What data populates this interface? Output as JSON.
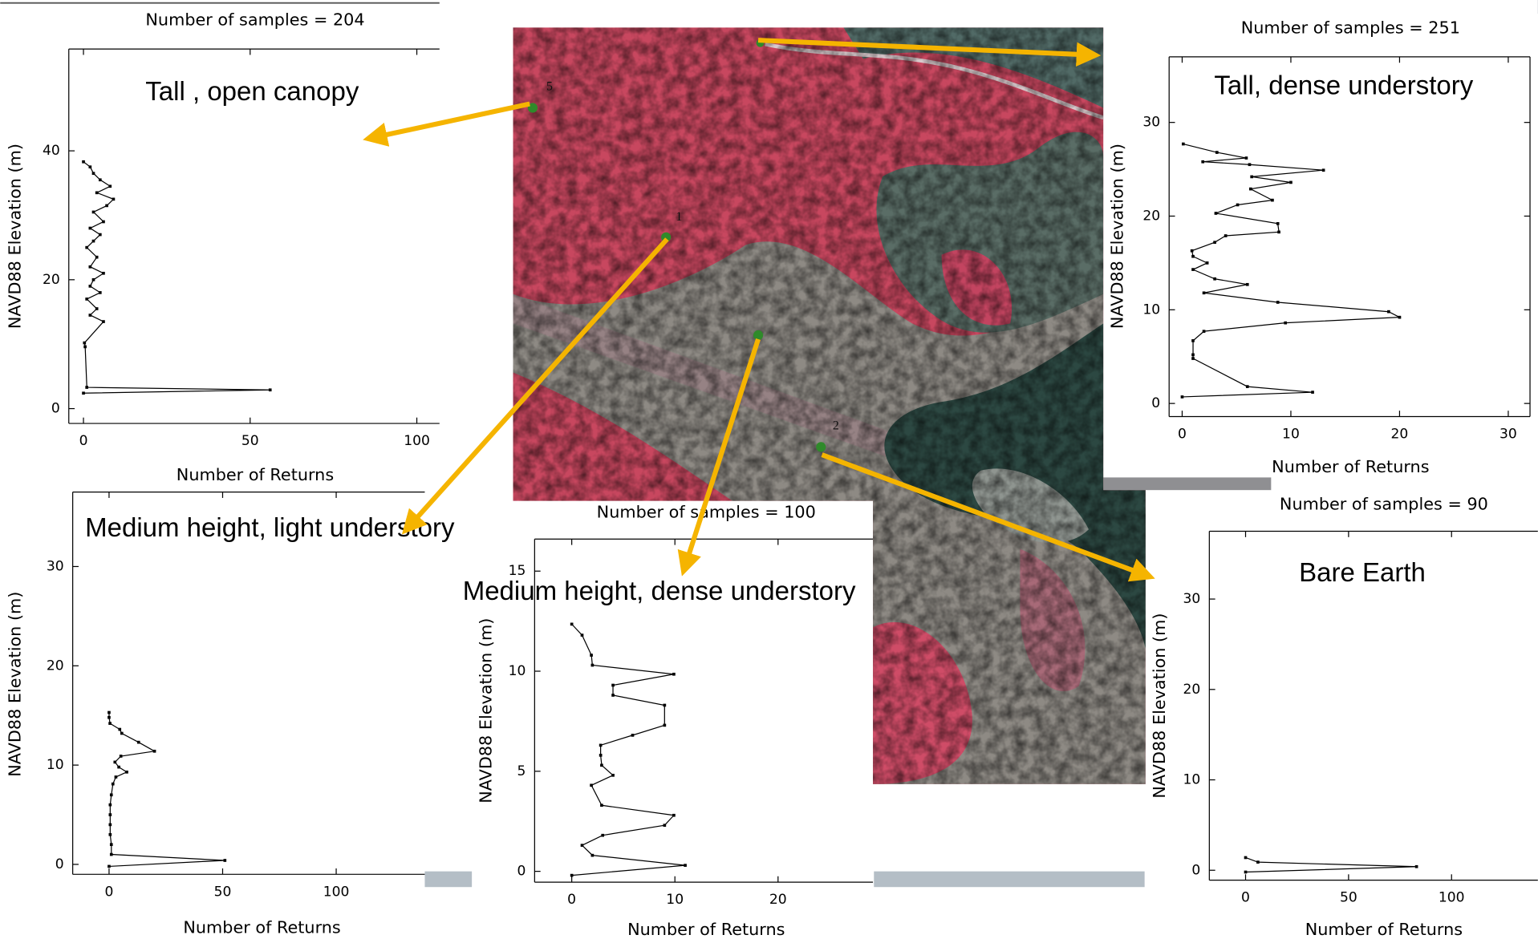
{
  "chart_data": [
    {
      "type": "line",
      "title": "Number of samples = 204",
      "annotation": "Tall , open canopy",
      "xlabel": "Number of Returns",
      "ylabel": "NAVD88 Elevation (m)",
      "color": "#000000",
      "x": [
        0,
        56,
        1,
        0.5,
        0.3,
        6,
        2,
        4,
        1,
        5,
        2,
        3,
        6,
        2,
        4,
        1,
        3,
        5,
        2,
        6,
        3,
        7,
        9,
        4,
        8,
        5,
        3,
        2,
        0
      ],
      "values": [
        2.4,
        2.9,
        3.3,
        9.6,
        10.2,
        13.5,
        14.5,
        15.5,
        17,
        18,
        19,
        20,
        21,
        22,
        23.5,
        25,
        26,
        27,
        28,
        29,
        30.5,
        31.5,
        32.5,
        33.5,
        34.5,
        35.5,
        36.5,
        37.5,
        38.3
      ],
      "xlim": [
        -4.4,
        106.8
      ],
      "ylim": [
        -2.3,
        55.8
      ],
      "xticks": [
        0,
        50,
        100
      ],
      "yticks": [
        0,
        20,
        40
      ]
    },
    {
      "type": "line",
      "title": "Number of samples = 251",
      "annotation": "Tall, dense understory",
      "xlabel": "Number of Returns",
      "ylabel": "NAVD88 Elevation (m)",
      "color": "#000000",
      "x": [
        0,
        12,
        6,
        1,
        1,
        1,
        2,
        9.5,
        20,
        19,
        8.8,
        2,
        6,
        3,
        1,
        2.3,
        1,
        0.9,
        3,
        4,
        8.9,
        8.8,
        3.1,
        5.1,
        8.3,
        6.3,
        10,
        6.4,
        13,
        6.2,
        1.9,
        5.9,
        3.2,
        0.1
      ],
      "values": [
        0.7,
        1.2,
        1.8,
        4.8,
        5.2,
        6.7,
        7.7,
        8.6,
        9.2,
        9.8,
        10.8,
        11.8,
        12.7,
        13.3,
        14.3,
        15,
        15.7,
        16.3,
        17.2,
        17.9,
        18.3,
        19.2,
        20.3,
        21.2,
        21.7,
        22.9,
        23.6,
        24.2,
        24.9,
        25.5,
        25.8,
        26.2,
        26.8,
        27.7
      ],
      "xlim": [
        -1.2,
        32
      ],
      "ylim": [
        -1.4,
        37
      ],
      "xticks": [
        0,
        10,
        20,
        30
      ],
      "yticks": [
        0,
        10,
        20,
        30
      ]
    },
    {
      "type": "line",
      "annotation": "Medium height, light understory",
      "xlabel": "Number of Returns",
      "ylabel": "NAVD88 Elevation (m)",
      "color": "#000000",
      "x": [
        0,
        51,
        1,
        1,
        0.5,
        0.5,
        0.5,
        0.5,
        1,
        1.7,
        3,
        7.8,
        4.3,
        2.6,
        5.2,
        20,
        13,
        5.6,
        4.7,
        0.4,
        0,
        0
      ],
      "values": [
        -0.2,
        0.4,
        1,
        2,
        3,
        4,
        5,
        6,
        7,
        8.1,
        8.8,
        9.3,
        9.8,
        10.3,
        10.9,
        11.4,
        12.3,
        13.2,
        13.6,
        14.2,
        14.8,
        15.3
      ],
      "xlim": [
        -16,
        139
      ],
      "ylim": [
        -1,
        37.5
      ],
      "xticks": [
        0,
        50,
        100
      ],
      "yticks": [
        0,
        10,
        20,
        30
      ]
    },
    {
      "type": "line",
      "title": "Number of samples = 100",
      "annotation": "Medium height, dense understory",
      "xlabel": "Number of Returns",
      "ylabel": "NAVD88 Elevation (m)",
      "color": "#000000",
      "x": [
        0,
        1,
        1.9,
        2,
        9.9,
        4,
        4,
        9,
        9,
        5.9,
        2.8,
        2.8,
        2.9,
        4,
        1.9,
        2.9,
        9.9,
        9,
        3,
        1,
        2,
        11,
        0
      ],
      "values": [
        12.35,
        11.8,
        10.8,
        10.3,
        9.85,
        9.3,
        8.8,
        8.3,
        7.3,
        6.8,
        6.3,
        5.8,
        5.3,
        4.8,
        4.3,
        3.3,
        2.8,
        2.3,
        1.8,
        1.3,
        0.8,
        0.3,
        -0.2
      ],
      "xlim": [
        -3.6,
        29.2
      ],
      "ylim": [
        -0.54,
        16.6
      ],
      "xticks": [
        0,
        10,
        20
      ],
      "yticks": [
        0,
        5,
        10,
        15
      ]
    },
    {
      "type": "line",
      "title": "Number of samples = 90",
      "annotation": "Bare Earth",
      "xlabel": "Number of Returns",
      "ylabel": "NAVD88 Elevation (m)",
      "color": "#000000",
      "x": [
        0,
        83,
        6,
        0
      ],
      "values": [
        -0.2,
        0.4,
        0.9,
        1.4
      ],
      "xlim": [
        -17.6,
        141.9
      ],
      "ylim": [
        -1.1,
        37.5
      ],
      "xticks": [
        0,
        50,
        100
      ],
      "yticks": [
        0,
        10,
        20,
        30
      ]
    }
  ],
  "map_labels": [
    "5",
    "1",
    "2"
  ]
}
